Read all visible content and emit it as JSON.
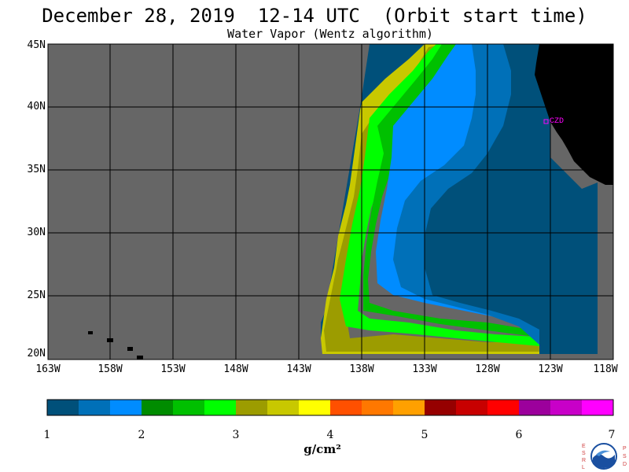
{
  "title": "December 28, 2019  12-14 UTC  (Orbit start time)",
  "subtitle": "Water Vapor (Wentz algorithm)",
  "lat_labels": [
    "45N",
    "40N",
    "35N",
    "30N",
    "25N",
    "20N"
  ],
  "lon_labels": [
    "163W",
    "158W",
    "153W",
    "148W",
    "143W",
    "138W",
    "133W",
    "128W",
    "123W",
    "118W"
  ],
  "station_label": "CZD",
  "colorbar": {
    "ticks": [
      "1",
      "2",
      "3",
      "4",
      "5",
      "6",
      "7"
    ],
    "unit": "g/cm²",
    "colors": [
      "#00507a",
      "#0070b8",
      "#008cff",
      "#008c00",
      "#00c000",
      "#00ff00",
      "#9c9c00",
      "#c8c800",
      "#ffff00",
      "#ff5000",
      "#ff7800",
      "#ffa000",
      "#960000",
      "#c80000",
      "#ff0000",
      "#9c009c",
      "#c800c8",
      "#ff00ff"
    ]
  },
  "logo_letters": {
    "left": [
      "E",
      "S",
      "R",
      "L"
    ],
    "right": [
      "P",
      "S",
      "D"
    ]
  }
}
